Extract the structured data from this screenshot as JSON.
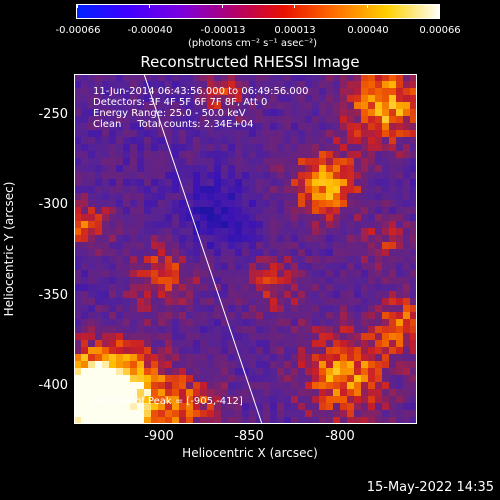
{
  "colorbar": {
    "tick_labels": [
      "-0.00066",
      "-0.00040",
      "-0.00013",
      "0.00013",
      "0.00040",
      "0.00066"
    ],
    "units": "(photons cm⁻² s⁻¹ asec⁻²)",
    "colors": [
      "#0022ff",
      "#4000ff",
      "#7b00e0",
      "#b00070",
      "#e81000",
      "#ff7000",
      "#ffd000",
      "#fffff8"
    ]
  },
  "title": "Reconstructed RHESSI Image",
  "info": {
    "time": "11-Jun-2014 06:43:56.000 to 06:49:56.000",
    "detectors": "Detectors: 3F 4F 5F 6F 7F 8F, Att 0",
    "energy": "Energy Range: 25.0 - 50.0 keV",
    "clean": "Clean     Total counts: 2.34E+04",
    "peak": "Position of Peak = [-905,-412]"
  },
  "axes": {
    "xlabel": "Heliocentric X (arcsec)",
    "ylabel": "Heliocentric Y (arcsec)",
    "xticks": [
      "-900",
      "-850",
      "-800"
    ],
    "yticks": [
      "-250",
      "-300",
      "-350",
      "-400"
    ],
    "xlim": [
      -946,
      -841
    ],
    "ylim": [
      -422,
      -222
    ]
  },
  "footer": "15-May-2022 14:35"
}
